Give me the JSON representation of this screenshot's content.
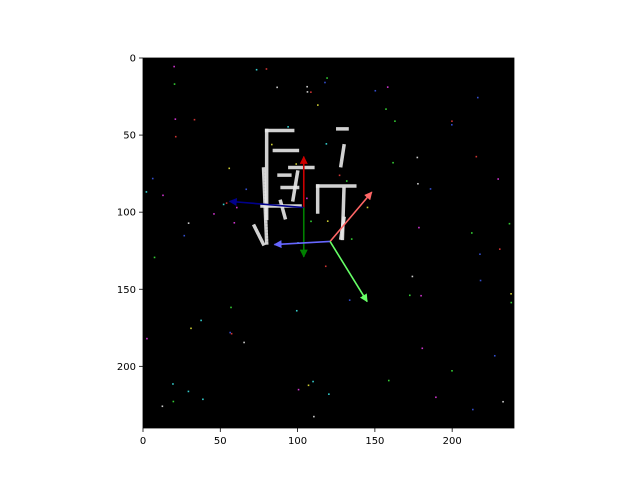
{
  "chart_data": {
    "type": "heatmap",
    "title": "",
    "xlabel": "",
    "ylabel": "",
    "xlim": [
      0,
      240
    ],
    "ylim": [
      240,
      0
    ],
    "x_ticks": [
      "0",
      "50",
      "100",
      "150",
      "200"
    ],
    "y_ticks": [
      "0",
      "50",
      "100",
      "150",
      "200"
    ],
    "x_tick_values": [
      0,
      50,
      100,
      150,
      200
    ],
    "y_tick_values": [
      0,
      50,
      100,
      150,
      200
    ],
    "background": "#000000",
    "image_content": "noisy binarized glyph (Chinese character-like) centered in a dark frame",
    "glyph_color": "#e8e8e8",
    "arrows": [
      {
        "color": "#cc0000",
        "from": [
          104,
          97
        ],
        "to": [
          104,
          64
        ]
      },
      {
        "color": "#00008b",
        "from": [
          104,
          97
        ],
        "to": [
          56,
          93
        ]
      },
      {
        "color": "#008000",
        "from": [
          104,
          97
        ],
        "to": [
          104,
          129
        ]
      },
      {
        "color": "#ff6666",
        "from": [
          121,
          119
        ],
        "to": [
          148,
          87
        ]
      },
      {
        "color": "#6666ff",
        "from": [
          121,
          119
        ],
        "to": [
          85,
          121
        ]
      },
      {
        "color": "#66ff66",
        "from": [
          121,
          119
        ],
        "to": [
          145,
          158
        ]
      }
    ]
  }
}
